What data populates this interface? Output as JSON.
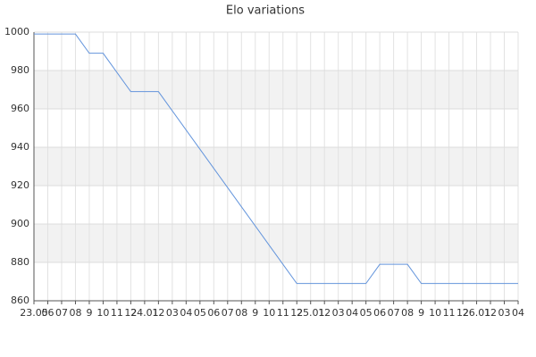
{
  "chart_data": {
    "type": "line",
    "title": "Elo variations",
    "categories": [
      "23.05",
      "06",
      "07",
      "08",
      "9",
      "10",
      "11",
      "12",
      "24.01",
      "12",
      "03",
      "04",
      "05",
      "06",
      "07",
      "08",
      "9",
      "10",
      "11",
      "12",
      "25.01",
      "12",
      "03",
      "04",
      "05",
      "06",
      "07",
      "08",
      "9",
      "10",
      "11",
      "12",
      "26.01",
      "12",
      "03",
      "04"
    ],
    "values": [
      999,
      999,
      999,
      999,
      989,
      989,
      979,
      969,
      969,
      969,
      959,
      949,
      939,
      929,
      919,
      909,
      899,
      889,
      879,
      869,
      869,
      869,
      869,
      869,
      869,
      879,
      879,
      879,
      869,
      869,
      869,
      869,
      869,
      869,
      869,
      869
    ],
    "color": "#6495dc",
    "ylim": [
      860,
      1000
    ],
    "yticks": [
      860,
      880,
      900,
      920,
      940,
      960,
      980,
      1000
    ],
    "grid": true,
    "alternate_bands": true
  }
}
